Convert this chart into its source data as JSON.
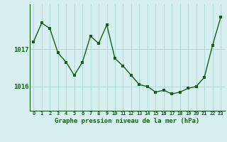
{
  "x": [
    0,
    1,
    2,
    3,
    4,
    5,
    6,
    7,
    8,
    9,
    10,
    11,
    12,
    13,
    14,
    15,
    16,
    17,
    18,
    19,
    20,
    21,
    22,
    23
  ],
  "y": [
    1017.2,
    1017.7,
    1017.55,
    1016.9,
    1016.65,
    1016.3,
    1016.65,
    1017.35,
    1017.15,
    1017.65,
    1016.75,
    1016.55,
    1016.3,
    1016.05,
    1016.0,
    1015.85,
    1015.9,
    1015.8,
    1015.85,
    1015.95,
    1016.0,
    1016.25,
    1017.1,
    1017.85
  ],
  "line_color": "#1a5c1a",
  "marker_color": "#1a5c1a",
  "bg_color": "#d6f0f0",
  "grid_color": "#b0d8d8",
  "xlabel": "Graphe pression niveau de la mer (hPa)",
  "ylim_min": 1015.35,
  "ylim_max": 1018.2,
  "ytick_positions": [
    1016.0,
    1017.0
  ],
  "ytick_labels": [
    "1016",
    "1017"
  ],
  "xtick_labels": [
    "0",
    "1",
    "2",
    "3",
    "4",
    "5",
    "6",
    "7",
    "8",
    "9",
    "10",
    "11",
    "12",
    "13",
    "14",
    "15",
    "16",
    "17",
    "18",
    "19",
    "20",
    "21",
    "22",
    "23"
  ]
}
